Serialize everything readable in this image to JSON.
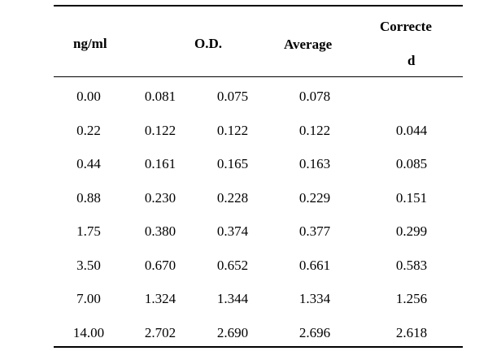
{
  "headers": {
    "col1": "ng/ml",
    "col2": "O.D.",
    "col4": "Average",
    "col5_line1": "Correcte",
    "col5_line2": "d"
  },
  "rows": [
    {
      "ng": "0.00",
      "od1": "0.081",
      "od2": "0.075",
      "avg": "0.078",
      "corrected": ""
    },
    {
      "ng": "0.22",
      "od1": "0.122",
      "od2": "0.122",
      "avg": "0.122",
      "corrected": "0.044"
    },
    {
      "ng": "0.44",
      "od1": "0.161",
      "od2": "0.165",
      "avg": "0.163",
      "corrected": "0.085"
    },
    {
      "ng": "0.88",
      "od1": "0.230",
      "od2": "0.228",
      "avg": "0.229",
      "corrected": "0.151"
    },
    {
      "ng": "1.75",
      "od1": "0.380",
      "od2": "0.374",
      "avg": "0.377",
      "corrected": "0.299"
    },
    {
      "ng": "3.50",
      "od1": "0.670",
      "od2": "0.652",
      "avg": "0.661",
      "corrected": "0.583"
    },
    {
      "ng": "7.00",
      "od1": "1.324",
      "od2": "1.344",
      "avg": "1.334",
      "corrected": "1.256"
    },
    {
      "ng": "14.00",
      "od1": "2.702",
      "od2": "2.690",
      "avg": "2.696",
      "corrected": "2.618"
    }
  ]
}
